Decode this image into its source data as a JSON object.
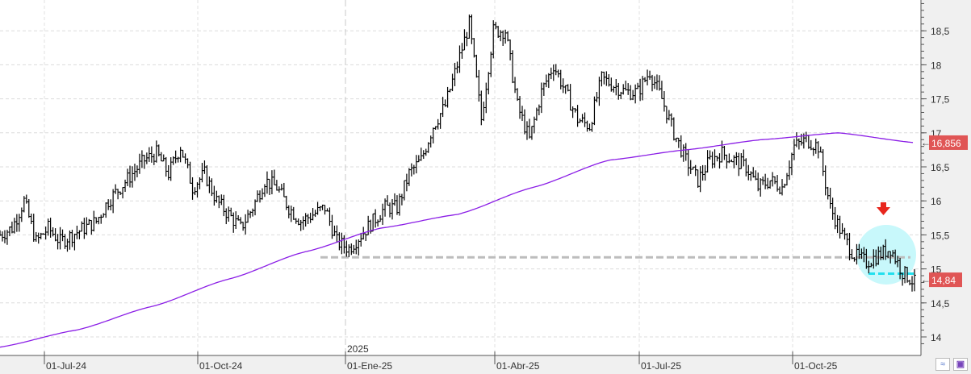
{
  "chart_data": {
    "type": "ohlc",
    "title": "",
    "xlabel": "",
    "ylabel": "",
    "ylim": [
      13.8,
      18.9
    ],
    "y_ticks": [
      "14",
      "14,5",
      "15",
      "15,5",
      "16",
      "16,5",
      "17",
      "17,5",
      "18",
      "18,5"
    ],
    "x_ticks": [
      "01-Jul-24",
      "01-Oct-24",
      "01-Ene-25",
      "01-Abr-25",
      "01-Jul-25",
      "01-Oct-25"
    ],
    "year_marker": "2025",
    "grid": true,
    "approx_weekly_closes": [
      15.5,
      15.6,
      16.0,
      15.4,
      15.6,
      15.4,
      15.5,
      15.6,
      15.7,
      16.0,
      16.2,
      16.4,
      16.6,
      16.7,
      16.4,
      16.8,
      16.2,
      16.4,
      16.0,
      15.8,
      15.6,
      15.9,
      16.3,
      16.2,
      15.9,
      15.7,
      15.8,
      15.9,
      15.4,
      15.3,
      15.5,
      15.7,
      15.9,
      15.9,
      16.4,
      16.6,
      17.1,
      17.4,
      18.0,
      18.6,
      17.2,
      18.5,
      18.5,
      17.4,
      16.9,
      17.6,
      18.0,
      17.6,
      17.2,
      17.1,
      17.8,
      17.7,
      17.6,
      17.6,
      17.9,
      17.5,
      17.0,
      16.6,
      16.3,
      16.6,
      16.7,
      16.6,
      16.5,
      16.2,
      16.3,
      16.2,
      16.8,
      16.9,
      16.8,
      15.9,
      15.5,
      15.2,
      15.1,
      15.2,
      15.3,
      14.95,
      14.8
    ],
    "moving_average": {
      "color": "#8b1ee6",
      "points": [
        13.85,
        14.1,
        14.45,
        14.85,
        15.25,
        15.6,
        15.8,
        16.2,
        16.6,
        16.75,
        16.9,
        17.0,
        16.856
      ]
    },
    "last_price": {
      "label": "14,84",
      "value": 14.84,
      "color": "#e05555"
    },
    "ma_value": {
      "label": "16,856",
      "value": 16.856,
      "color": "#e05555"
    },
    "support_line": {
      "value": 15.17,
      "color": "#bdbdbd"
    },
    "breakdown_line": {
      "value": 14.93,
      "color": "#22e0ee"
    },
    "highlight_circle_color": "#c8f8fb",
    "arrow_color": "#e8261d",
    "bar_color": "#000000"
  },
  "toolbar": {
    "indicator_icon": "wave-icon",
    "save_icon": "save-icon"
  }
}
